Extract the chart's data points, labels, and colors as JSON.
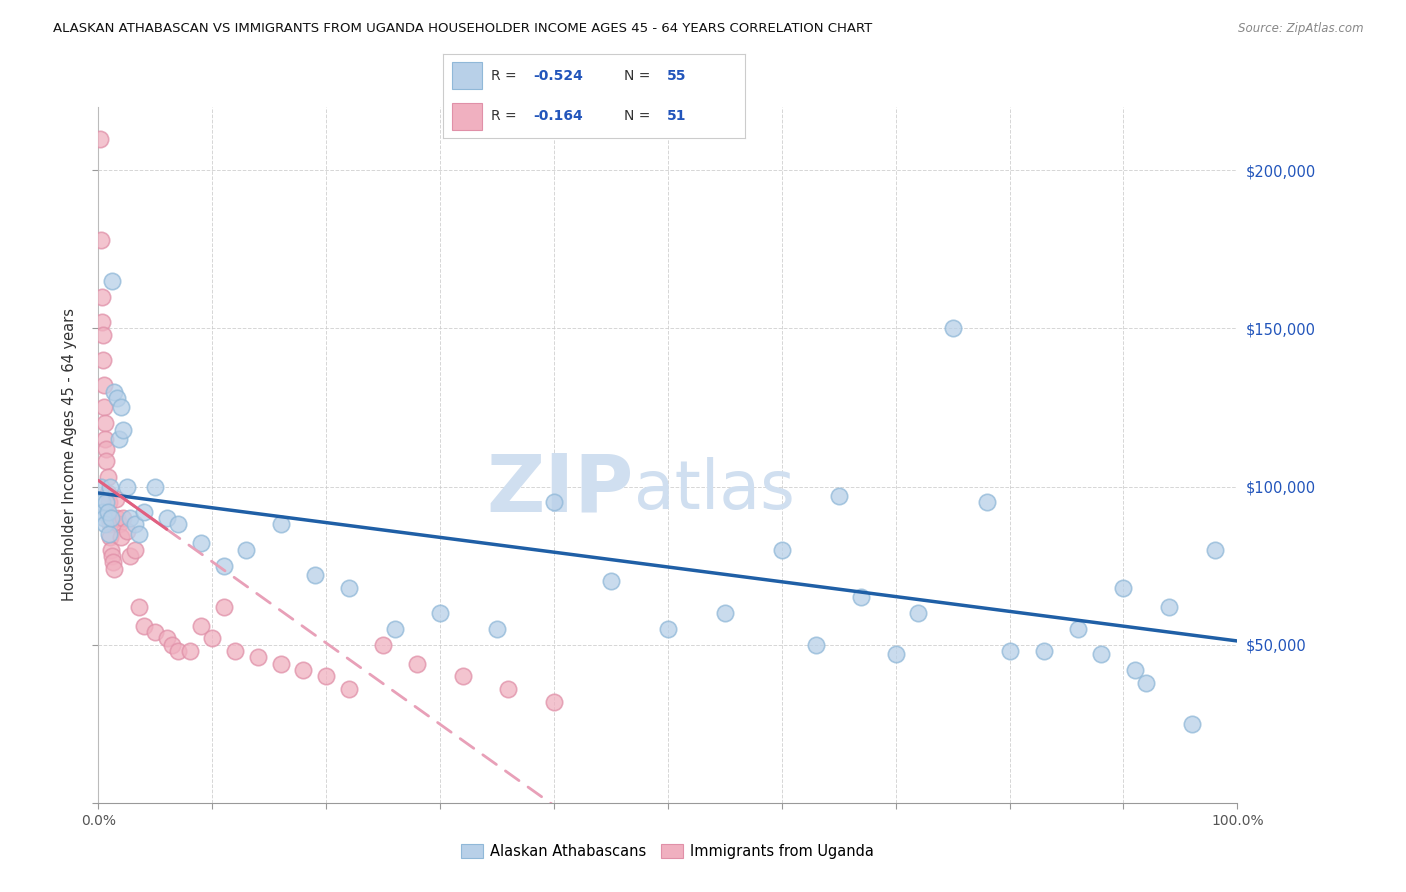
{
  "title": "ALASKAN ATHABASCAN VS IMMIGRANTS FROM UGANDA HOUSEHOLDER INCOME AGES 45 - 64 YEARS CORRELATION CHART",
  "source": "Source: ZipAtlas.com",
  "ylabel": "Householder Income Ages 45 - 64 years",
  "legend_label1": "Alaskan Athabascans",
  "legend_label2": "Immigrants from Uganda",
  "R1": -0.524,
  "N1": 55,
  "R2": -0.164,
  "N2": 51,
  "color_blue_fill": "#b8d0e8",
  "color_blue_edge": "#90b8d8",
  "color_blue_line": "#1f5fa6",
  "color_pink_fill": "#f0b0c0",
  "color_pink_edge": "#e090a8",
  "color_pink_line": "#e06080",
  "color_pink_dash": "#e8a0b8",
  "watermark_color": "#d0dff0",
  "background_color": "#ffffff",
  "grid_color": "#cccccc",
  "xlim": [
    0,
    1.0
  ],
  "ylim": [
    0,
    220000
  ],
  "blue_x": [
    0.002,
    0.003,
    0.004,
    0.005,
    0.006,
    0.007,
    0.008,
    0.009,
    0.01,
    0.011,
    0.012,
    0.014,
    0.016,
    0.018,
    0.02,
    0.022,
    0.025,
    0.028,
    0.032,
    0.036,
    0.04,
    0.05,
    0.06,
    0.07,
    0.09,
    0.11,
    0.13,
    0.16,
    0.19,
    0.22,
    0.26,
    0.3,
    0.35,
    0.4,
    0.45,
    0.5,
    0.55,
    0.6,
    0.63,
    0.65,
    0.67,
    0.7,
    0.72,
    0.75,
    0.78,
    0.8,
    0.83,
    0.86,
    0.88,
    0.9,
    0.91,
    0.92,
    0.94,
    0.96,
    0.98
  ],
  "blue_y": [
    100000,
    95000,
    92000,
    90000,
    88000,
    95000,
    92000,
    85000,
    100000,
    90000,
    165000,
    130000,
    128000,
    115000,
    125000,
    118000,
    100000,
    90000,
    88000,
    85000,
    92000,
    100000,
    90000,
    88000,
    82000,
    75000,
    80000,
    88000,
    72000,
    68000,
    55000,
    60000,
    55000,
    95000,
    70000,
    55000,
    60000,
    80000,
    50000,
    97000,
    65000,
    47000,
    60000,
    150000,
    95000,
    48000,
    48000,
    55000,
    47000,
    68000,
    42000,
    38000,
    62000,
    25000,
    80000
  ],
  "pink_x": [
    0.001,
    0.002,
    0.003,
    0.003,
    0.004,
    0.004,
    0.005,
    0.005,
    0.006,
    0.006,
    0.007,
    0.007,
    0.008,
    0.008,
    0.009,
    0.009,
    0.01,
    0.01,
    0.011,
    0.012,
    0.013,
    0.014,
    0.015,
    0.016,
    0.018,
    0.02,
    0.022,
    0.025,
    0.028,
    0.032,
    0.036,
    0.04,
    0.05,
    0.06,
    0.065,
    0.07,
    0.08,
    0.09,
    0.1,
    0.11,
    0.12,
    0.14,
    0.16,
    0.18,
    0.2,
    0.22,
    0.25,
    0.28,
    0.32,
    0.36,
    0.4
  ],
  "pink_y": [
    210000,
    178000,
    160000,
    152000,
    148000,
    140000,
    132000,
    125000,
    120000,
    115000,
    112000,
    108000,
    103000,
    98000,
    95000,
    90000,
    88000,
    84000,
    80000,
    78000,
    76000,
    74000,
    96000,
    90000,
    88000,
    84000,
    90000,
    86000,
    78000,
    80000,
    62000,
    56000,
    54000,
    52000,
    50000,
    48000,
    48000,
    56000,
    52000,
    62000,
    48000,
    46000,
    44000,
    42000,
    40000,
    36000,
    50000,
    44000,
    40000,
    36000,
    32000
  ]
}
